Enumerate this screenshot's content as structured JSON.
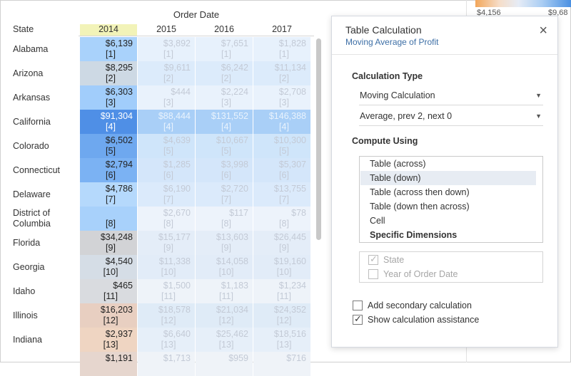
{
  "view": {
    "column_title": "Order Date",
    "row_header": "State",
    "years": [
      "2014",
      "2015",
      "2016",
      "2017"
    ],
    "rows": [
      {
        "state": "Alabama",
        "cells": [
          [
            "$6,139",
            "[1]"
          ],
          [
            "$3,892",
            "[1]"
          ],
          [
            "$7,651",
            "[1]"
          ],
          [
            "$1,828",
            "[1]"
          ]
        ]
      },
      {
        "state": "Arizona",
        "cells": [
          [
            "$8,295",
            "[2]"
          ],
          [
            "$9,611",
            "[2]"
          ],
          [
            "$6,242",
            "[2]"
          ],
          [
            "$11,134",
            "[2]"
          ]
        ]
      },
      {
        "state": "Arkansas",
        "cells": [
          [
            "$6,303",
            "[3]"
          ],
          [
            "$444",
            "[3]"
          ],
          [
            "$2,224",
            "[3]"
          ],
          [
            "$2,708",
            "[3]"
          ]
        ]
      },
      {
        "state": "California",
        "cells": [
          [
            "$91,304",
            "[4]"
          ],
          [
            "$88,444",
            "[4]"
          ],
          [
            "$131,552",
            "[4]"
          ],
          [
            "$146,388",
            "[4]"
          ]
        ]
      },
      {
        "state": "Colorado",
        "cells": [
          [
            "$6,502",
            "[5]"
          ],
          [
            "$4,639",
            "[5]"
          ],
          [
            "$10,667",
            "[5]"
          ],
          [
            "$10,300",
            "[5]"
          ]
        ]
      },
      {
        "state": "Connecticut",
        "cells": [
          [
            "$2,794",
            "[6]"
          ],
          [
            "$1,285",
            "[6]"
          ],
          [
            "$3,998",
            "[6]"
          ],
          [
            "$5,307",
            "[6]"
          ]
        ]
      },
      {
        "state": "Delaware",
        "cells": [
          [
            "$4,786",
            "[7]"
          ],
          [
            "$6,190",
            "[7]"
          ],
          [
            "$2,720",
            "[7]"
          ],
          [
            "$13,755",
            "[7]"
          ]
        ]
      },
      {
        "state": "District of Columbia",
        "cells": [
          [
            "",
            "[8]"
          ],
          [
            "$2,670",
            "[8]"
          ],
          [
            "$117",
            "[8]"
          ],
          [
            "$78",
            "[8]"
          ]
        ]
      },
      {
        "state": "Florida",
        "cells": [
          [
            "$34,248",
            "[9]"
          ],
          [
            "$15,177",
            "[9]"
          ],
          [
            "$13,603",
            "[9]"
          ],
          [
            "$26,445",
            "[9]"
          ]
        ]
      },
      {
        "state": "Georgia",
        "cells": [
          [
            "$4,540",
            "[10]"
          ],
          [
            "$11,338",
            "[10]"
          ],
          [
            "$14,058",
            "[10]"
          ],
          [
            "$19,160",
            "[10]"
          ]
        ]
      },
      {
        "state": "Idaho",
        "cells": [
          [
            "$465",
            "[11]"
          ],
          [
            "$1,500",
            "[11]"
          ],
          [
            "$1,183",
            "[11]"
          ],
          [
            "$1,234",
            "[11]"
          ]
        ]
      },
      {
        "state": "Illinois",
        "cells": [
          [
            "$16,203",
            "[12]"
          ],
          [
            "$18,578",
            "[12]"
          ],
          [
            "$21,034",
            "[12]"
          ],
          [
            "$24,352",
            "[12]"
          ]
        ]
      },
      {
        "state": "Indiana",
        "cells": [
          [
            "$2,937",
            "[13]"
          ],
          [
            "$6,640",
            "[13]"
          ],
          [
            "$25,462",
            "[13]"
          ],
          [
            "$18,516",
            "[13]"
          ]
        ]
      },
      {
        "state": "",
        "cells": [
          [
            "$1,191",
            ""
          ],
          [
            "$1,713",
            ""
          ],
          [
            "$959",
            ""
          ],
          [
            "$716",
            ""
          ]
        ]
      }
    ]
  },
  "colors": {
    "c2014": [
      "#a9d2fb",
      "#cdd9e4",
      "#a1cdfb",
      "#4f8fe6",
      "#6ea8ef",
      "#7bb2f3",
      "#b5d9fc",
      "#a8d1fb",
      "#d2d3d6",
      "#d5dde6",
      "#d9dbdf",
      "#e8cfc1",
      "#efd5c2",
      "#e6d6ce"
    ],
    "c_other": [
      "#e7f1fc",
      "#dcebfb",
      "#e9f2fc",
      "#a9cff7",
      "#cfe5fa",
      "#d4e6fa",
      "#dbeafb",
      "#edf3fb",
      "#e4edf8",
      "#e2ecf8",
      "#eef3f9",
      "#dfebf7",
      "#e6eff9",
      "#eff3f8"
    ],
    "legend_left": "#f2a65a",
    "legend_right": "#4a90e2"
  },
  "legend": {
    "min": "$4,156",
    "max": "$9,68"
  },
  "panel": {
    "title": "Table Calculation",
    "subtitle": "Moving Average of Profit",
    "close_glyph": "×",
    "calc_type_label": "Calculation Type",
    "calc_type_value": "Moving Calculation",
    "calc_detail_value": "Average, prev 2, next 0",
    "compute_using_label": "Compute Using",
    "compute_options": [
      {
        "label": "Table (across)",
        "selected": false
      },
      {
        "label": "Table (down)",
        "selected": true
      },
      {
        "label": "Table (across then down)",
        "selected": false
      },
      {
        "label": "Table (down then across)",
        "selected": false
      },
      {
        "label": "Cell",
        "selected": false
      },
      {
        "label": "Specific Dimensions",
        "selected": false
      }
    ],
    "dimensions": [
      {
        "label": "State",
        "checked": true
      },
      {
        "label": "Year of Order Date",
        "checked": false
      }
    ],
    "add_secondary_label": "Add secondary calculation",
    "add_secondary_checked": false,
    "show_assist_label": "Show calculation assistance",
    "show_assist_checked": true
  }
}
